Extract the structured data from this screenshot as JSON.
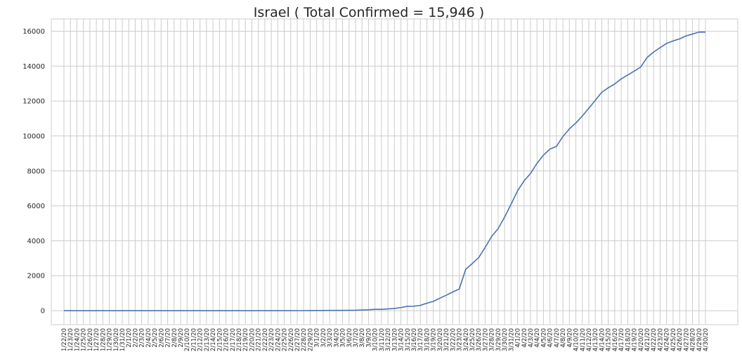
{
  "chart_data": {
    "type": "line",
    "title": "Israel ( Total Confirmed = 15,946 )",
    "xlabel": "",
    "ylabel": "",
    "ylim": [
      -800,
      16700
    ],
    "yticks": [
      0,
      2000,
      4000,
      6000,
      8000,
      10000,
      12000,
      14000,
      16000
    ],
    "grid": true,
    "x": [
      "1/22/20",
      "1/23/20",
      "1/24/20",
      "1/25/20",
      "1/26/20",
      "1/27/20",
      "1/28/20",
      "1/29/20",
      "1/30/20",
      "1/31/20",
      "2/1/20",
      "2/2/20",
      "2/3/20",
      "2/4/20",
      "2/5/20",
      "2/6/20",
      "2/7/20",
      "2/8/20",
      "2/9/20",
      "2/10/20",
      "2/11/20",
      "2/12/20",
      "2/13/20",
      "2/14/20",
      "2/15/20",
      "2/16/20",
      "2/17/20",
      "2/18/20",
      "2/19/20",
      "2/20/20",
      "2/21/20",
      "2/22/20",
      "2/23/20",
      "2/24/20",
      "2/25/20",
      "2/26/20",
      "2/27/20",
      "2/28/20",
      "2/29/20",
      "3/1/20",
      "3/2/20",
      "3/3/20",
      "3/4/20",
      "3/5/20",
      "3/6/20",
      "3/7/20",
      "3/8/20",
      "3/9/20",
      "3/10/20",
      "3/11/20",
      "3/12/20",
      "3/13/20",
      "3/14/20",
      "3/15/20",
      "3/16/20",
      "3/17/20",
      "3/18/20",
      "3/19/20",
      "3/20/20",
      "3/21/20",
      "3/22/20",
      "3/23/20",
      "3/24/20",
      "3/25/20",
      "3/26/20",
      "3/27/20",
      "3/28/20",
      "3/29/20",
      "3/30/20",
      "3/31/20",
      "4/1/20",
      "4/2/20",
      "4/3/20",
      "4/4/20",
      "4/5/20",
      "4/6/20",
      "4/7/20",
      "4/8/20",
      "4/9/20",
      "4/10/20",
      "4/11/20",
      "4/12/20",
      "4/13/20",
      "4/14/20",
      "4/15/20",
      "4/16/20",
      "4/17/20",
      "4/18/20",
      "4/19/20",
      "4/20/20",
      "4/21/20",
      "4/22/20",
      "4/23/20",
      "4/24/20",
      "4/25/20",
      "4/26/20",
      "4/27/20",
      "4/28/20",
      "4/29/20",
      "4/30/20"
    ],
    "series": [
      {
        "name": "",
        "color": "#4c72b0",
        "values": [
          0,
          0,
          0,
          0,
          0,
          0,
          0,
          0,
          0,
          0,
          0,
          0,
          0,
          0,
          0,
          0,
          0,
          0,
          0,
          0,
          0,
          0,
          0,
          0,
          0,
          0,
          0,
          0,
          0,
          0,
          1,
          1,
          1,
          2,
          2,
          2,
          3,
          3,
          7,
          10,
          12,
          15,
          15,
          17,
          21,
          25,
          39,
          50,
          75,
          75,
          100,
          126,
          178,
          250,
          255,
          304,
          427,
          529,
          712,
          883,
          1071,
          1238,
          2369,
          2693,
          3035,
          3619,
          4247,
          4695,
          5358,
          6092,
          6857,
          7428,
          7851,
          8430,
          8904,
          9248,
          9404,
          9968,
          10408,
          10743,
          11145,
          11586,
          12046,
          12501,
          12758,
          12982,
          13265,
          13491,
          13713,
          13942,
          14498,
          14803,
          15058,
          15298,
          15443,
          15555,
          15728,
          15834,
          15946,
          15946
        ]
      }
    ]
  }
}
